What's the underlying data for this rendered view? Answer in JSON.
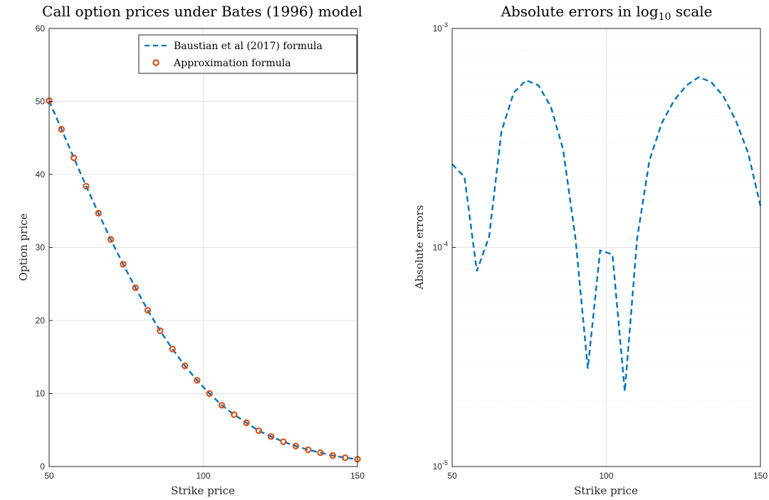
{
  "chart_data": [
    {
      "type": "line",
      "title": "Call option prices under Bates (1996) model",
      "xlabel": "Strike price",
      "ylabel": "Option price",
      "xlim": [
        50,
        150
      ],
      "ylim": [
        0,
        60
      ],
      "xticks": [
        50,
        100,
        150
      ],
      "yticks": [
        0,
        10,
        20,
        30,
        40,
        50,
        60
      ],
      "grid": true,
      "legend_position": "top-right",
      "series": [
        {
          "name": "Baustian et al (2017) formula",
          "style": "dashed-line",
          "color": "#0072BD",
          "x": [
            50,
            54,
            58,
            62,
            66,
            70,
            74,
            78,
            82,
            86,
            90,
            94,
            98,
            102,
            106,
            110,
            114,
            118,
            122,
            126,
            130,
            134,
            138,
            142,
            146,
            150
          ],
          "y": [
            50.1,
            46.2,
            42.3,
            38.4,
            34.7,
            31.1,
            27.7,
            24.5,
            21.4,
            18.6,
            16.1,
            13.8,
            11.8,
            10.0,
            8.4,
            7.1,
            6.0,
            4.9,
            4.1,
            3.4,
            2.8,
            2.3,
            1.9,
            1.5,
            1.2,
            1.0
          ]
        },
        {
          "name": "Approximation formula",
          "style": "circle-markers",
          "color": "#D95319",
          "x": [
            50,
            54,
            58,
            62,
            66,
            70,
            74,
            78,
            82,
            86,
            90,
            94,
            98,
            102,
            106,
            110,
            114,
            118,
            122,
            126,
            130,
            134,
            138,
            142,
            146,
            150
          ],
          "y": [
            50.1,
            46.2,
            42.3,
            38.4,
            34.7,
            31.1,
            27.7,
            24.5,
            21.4,
            18.6,
            16.1,
            13.8,
            11.8,
            10.0,
            8.4,
            7.1,
            6.0,
            4.9,
            4.1,
            3.4,
            2.8,
            2.3,
            1.9,
            1.5,
            1.2,
            1.0
          ]
        }
      ]
    },
    {
      "type": "line",
      "title_main": "Absolute errors in log",
      "title_sub": "10",
      "title_end": " scale",
      "xlabel": "Strike price",
      "ylabel": "Absolute errors",
      "xlim": [
        50,
        150
      ],
      "ylim": [
        1e-05,
        0.001
      ],
      "yscale": "log",
      "xticks": [
        50,
        100,
        150
      ],
      "ytick_labels": [
        {
          "value": 1e-05,
          "base": "10",
          "exp": "-5"
        },
        {
          "value": 0.0001,
          "base": "10",
          "exp": "-4"
        },
        {
          "value": 0.001,
          "base": "10",
          "exp": "-3"
        }
      ],
      "grid": true,
      "series": [
        {
          "style": "dashed-line",
          "color": "#0072BD",
          "x": [
            50,
            54,
            58,
            62,
            66,
            70,
            74,
            78,
            82,
            86,
            90,
            94,
            98,
            102,
            106,
            110,
            114,
            118,
            122,
            126,
            130,
            134,
            138,
            142,
            146,
            150
          ],
          "y": [
            0.00024,
            0.00021,
            7.8e-05,
            0.000112,
            0.00034,
            0.00051,
            0.00058,
            0.00055,
            0.00044,
            0.00028,
            0.00011,
            2.8e-05,
            9.7e-05,
            9.3e-05,
            2.2e-05,
            0.00011,
            0.00025,
            0.00037,
            0.00047,
            0.00055,
            0.0006,
            0.00057,
            0.00049,
            0.00038,
            0.00027,
            0.000155
          ]
        }
      ]
    }
  ]
}
